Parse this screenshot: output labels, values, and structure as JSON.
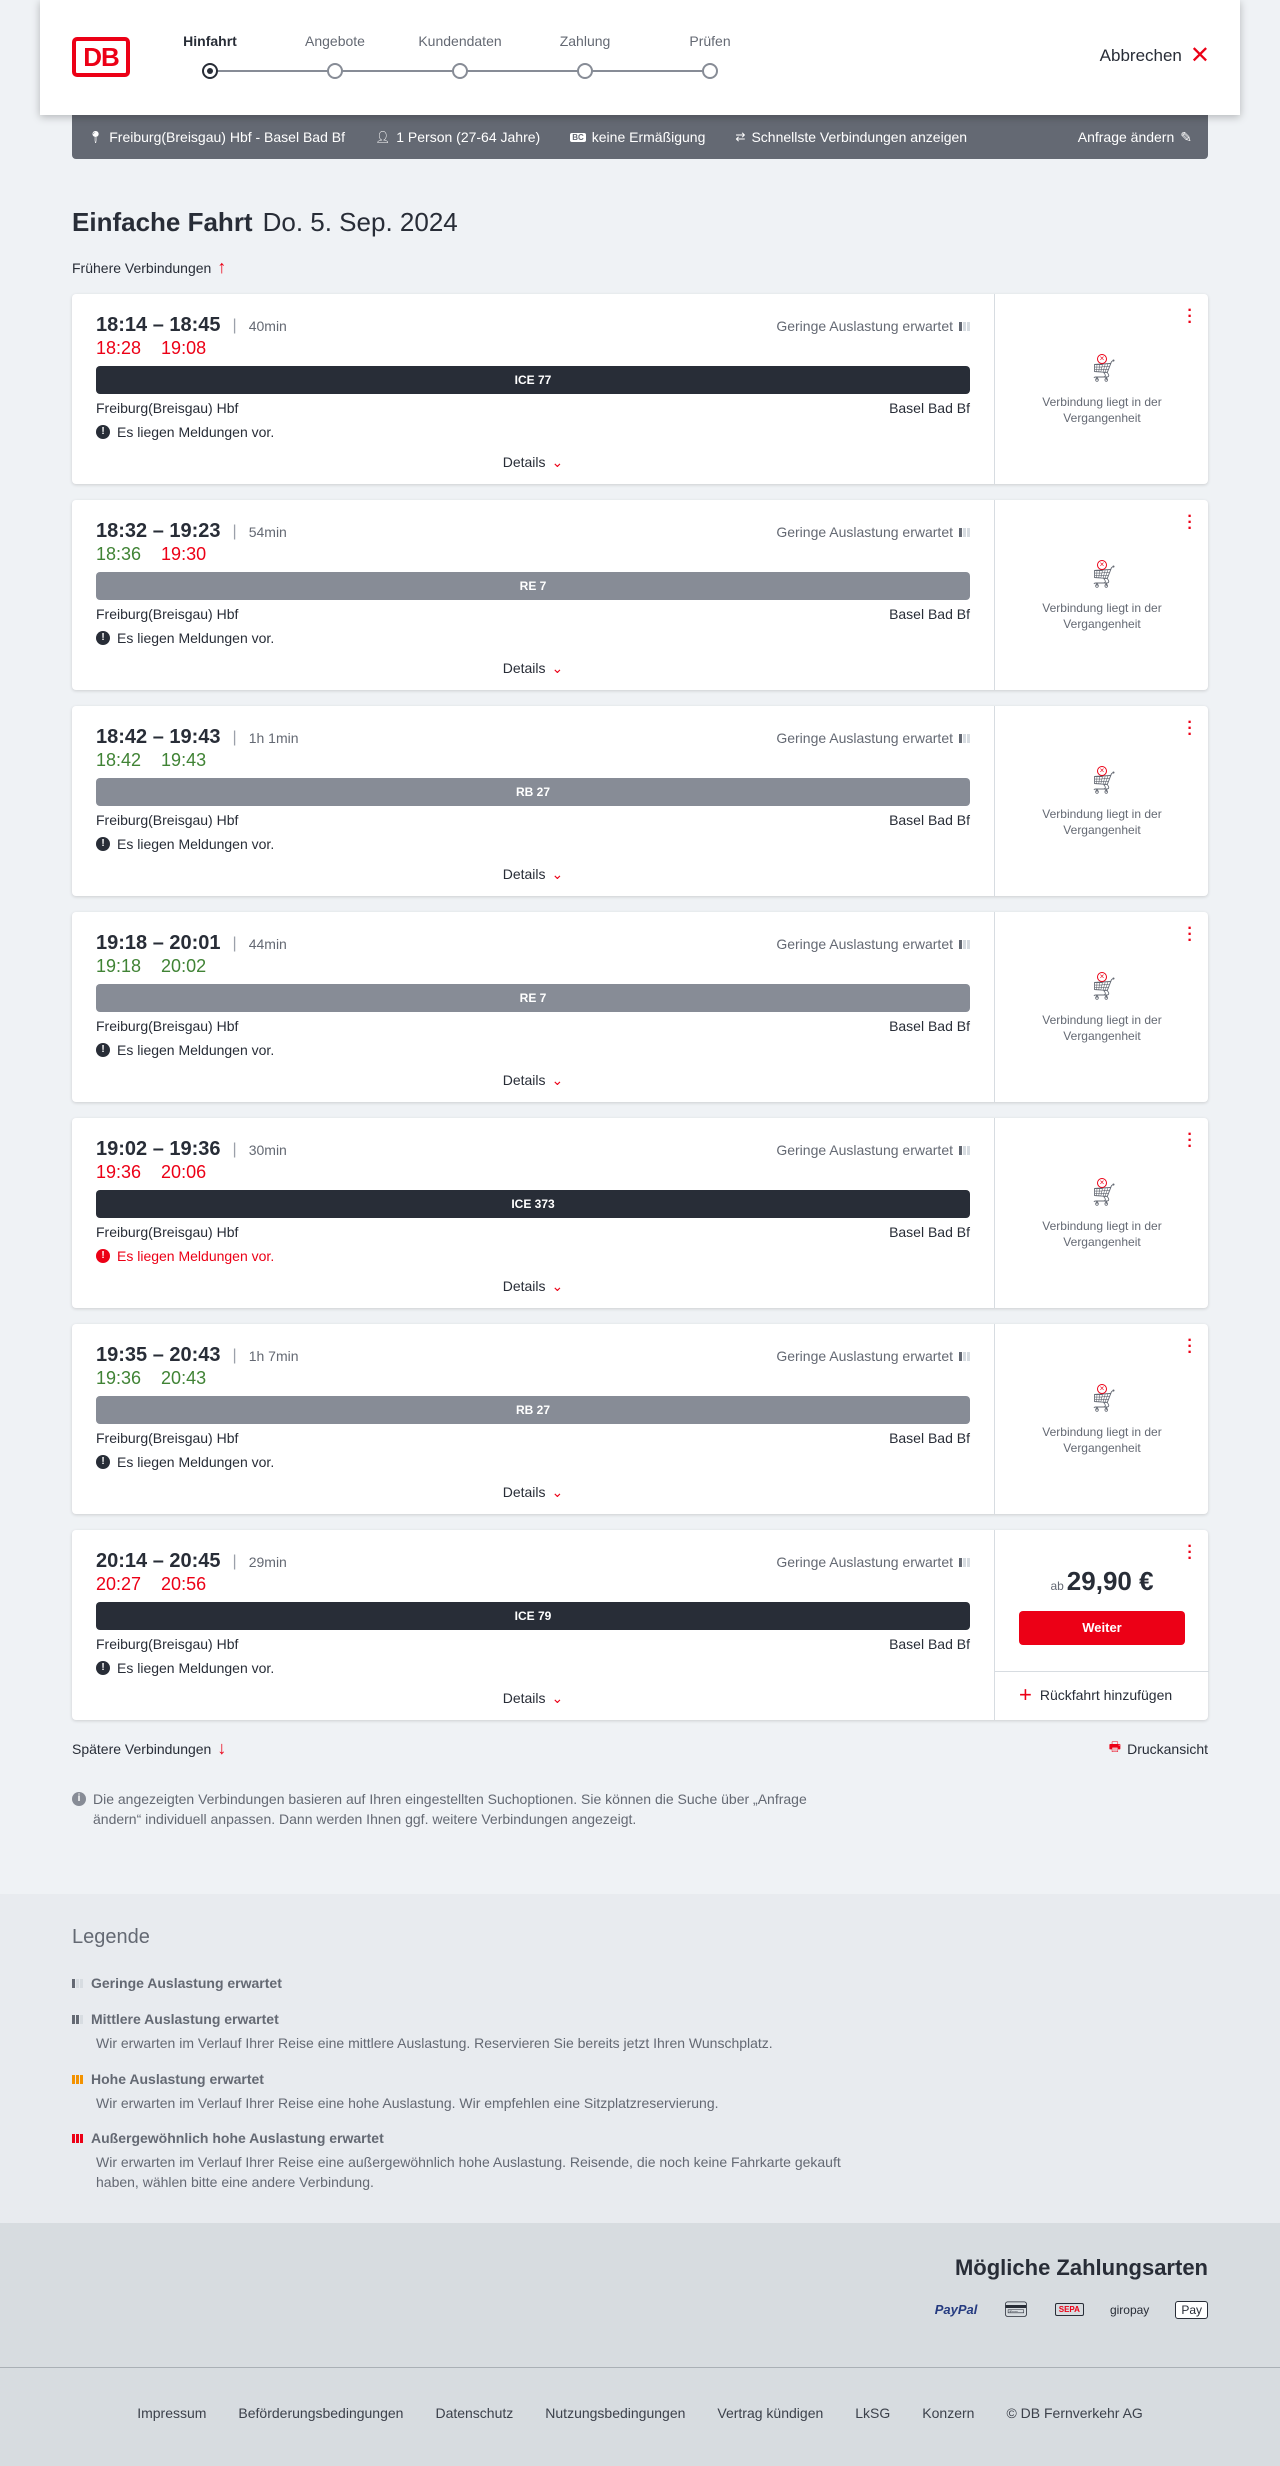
{
  "header": {
    "logo": "DB",
    "steps": [
      "Hinfahrt",
      "Angebote",
      "Kundendaten",
      "Zahlung",
      "Prüfen"
    ],
    "active_step": 0,
    "cancel": "Abbrechen"
  },
  "infobar": {
    "route": "Freiburg(Breisgau) Hbf - Basel Bad Bf",
    "persons": "1 Person (27-64 Jahre)",
    "bahncard_icon": "BC",
    "discount": "keine Ermäßigung",
    "fastest": "Schnellste Verbindungen anzeigen",
    "change": "Anfrage ändern"
  },
  "title": {
    "type": "Einfache Fahrt",
    "date": "Do. 5. Sep. 2024"
  },
  "earlier": "Frühere Verbindungen",
  "later": "Spätere Verbindungen",
  "print": "Druckansicht",
  "labels": {
    "details": "Details",
    "occupancy": "Geringe Auslastung erwartet",
    "past": "Verbindung liegt in der Vergangenheit",
    "price_prefix": "ab",
    "continue": "Weiter",
    "return": "Rückfahrt hinzufügen"
  },
  "colors": {
    "red": "#ec0016",
    "green": "#408335",
    "dark": "#282d37",
    "gray_train": "#878c96"
  },
  "connections": [
    {
      "time": "18:14 – 18:45",
      "duration": "40min",
      "dep_rt": "18:28",
      "dep_color": "red",
      "arr_rt": "19:08",
      "arr_color": "red",
      "train": "ICE 77",
      "train_style": "dark",
      "from": "Freiburg(Breisgau) Hbf",
      "to": "Basel Bad Bf",
      "message": "Es liegen Meldungen vor.",
      "message_alert": false,
      "past": true
    },
    {
      "time": "18:32 – 19:23",
      "duration": "54min",
      "dep_rt": "18:36",
      "dep_color": "green",
      "arr_rt": "19:30",
      "arr_color": "red",
      "train": "RE 7",
      "train_style": "gray",
      "from": "Freiburg(Breisgau) Hbf",
      "to": "Basel Bad Bf",
      "message": "Es liegen Meldungen vor.",
      "message_alert": false,
      "past": true
    },
    {
      "time": "18:42 – 19:43",
      "duration": "1h 1min",
      "dep_rt": "18:42",
      "dep_color": "green",
      "arr_rt": "19:43",
      "arr_color": "green",
      "train": "RB 27",
      "train_style": "gray",
      "from": "Freiburg(Breisgau) Hbf",
      "to": "Basel Bad Bf",
      "message": "Es liegen Meldungen vor.",
      "message_alert": false,
      "past": true
    },
    {
      "time": "19:18 – 20:01",
      "duration": "44min",
      "dep_rt": "19:18",
      "dep_color": "green",
      "arr_rt": "20:02",
      "arr_color": "green",
      "train": "RE 7",
      "train_style": "gray",
      "from": "Freiburg(Breisgau) Hbf",
      "to": "Basel Bad Bf",
      "message": "Es liegen Meldungen vor.",
      "message_alert": false,
      "past": true
    },
    {
      "time": "19:02 – 19:36",
      "duration": "30min",
      "dep_rt": "19:36",
      "dep_color": "red",
      "arr_rt": "20:06",
      "arr_color": "red",
      "train": "ICE 373",
      "train_style": "dark",
      "from": "Freiburg(Breisgau) Hbf",
      "to": "Basel Bad Bf",
      "message": "Es liegen Meldungen vor.",
      "message_alert": true,
      "past": true
    },
    {
      "time": "19:35 – 20:43",
      "duration": "1h 7min",
      "dep_rt": "19:36",
      "dep_color": "green",
      "arr_rt": "20:43",
      "arr_color": "green",
      "train": "RB 27",
      "train_style": "gray",
      "from": "Freiburg(Breisgau) Hbf",
      "to": "Basel Bad Bf",
      "message": "Es liegen Meldungen vor.",
      "message_alert": false,
      "past": true
    },
    {
      "time": "20:14 – 20:45",
      "duration": "29min",
      "dep_rt": "20:27",
      "dep_color": "red",
      "arr_rt": "20:56",
      "arr_color": "red",
      "train": "ICE 79",
      "train_style": "dark",
      "from": "Freiburg(Breisgau) Hbf",
      "to": "Basel Bad Bf",
      "message": "Es liegen Meldungen vor.",
      "message_alert": false,
      "past": false,
      "price": "29,90 €"
    }
  ],
  "note": "Die angezeigten Verbindungen basieren auf Ihren eingestellten Suchoptionen. Sie können die Suche über „Anfrage ändern“ individuell anpassen. Dann werden Ihnen ggf. weitere Verbindungen angezeigt.",
  "legend": {
    "title": "Legende",
    "items": [
      {
        "title": "Geringe Auslastung erwartet",
        "desc": "",
        "level": 1
      },
      {
        "title": "Mittlere Auslastung erwartet",
        "desc": "Wir erwarten im Verlauf Ihrer Reise eine mittlere Auslastung. Reservieren Sie bereits jetzt Ihren Wunschplatz.",
        "level": 2
      },
      {
        "title": "Hohe Auslastung erwartet",
        "desc": "Wir erwarten im Verlauf Ihrer Reise eine hohe Auslastung. Wir empfehlen eine Sitzplatzreservierung.",
        "level": 3
      },
      {
        "title": "Außergewöhnlich hohe Auslastung erwartet",
        "desc": "Wir erwarten im Verlauf Ihrer Reise eine außergewöhnlich hohe Auslastung. Reisende, die noch keine Fahrkarte gekauft haben, wählen bitte eine andere Verbindung.",
        "level": 4
      }
    ]
  },
  "payment": {
    "title": "Mögliche Zahlungsarten",
    "methods": [
      "PayPal",
      "Kreditkarte",
      "SEPA",
      "giropay",
      "Pay"
    ]
  },
  "footer": [
    "Impressum",
    "Beförderungsbedingungen",
    "Datenschutz",
    "Nutzungsbedingungen",
    "Vertrag kündigen",
    "LkSG",
    "Konzern",
    "© DB Fernverkehr AG"
  ]
}
